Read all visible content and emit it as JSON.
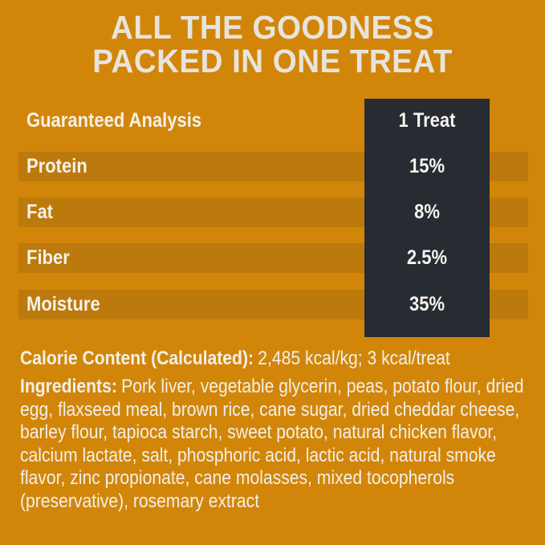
{
  "palette": {
    "background": "#D28609",
    "row_band": "#BC7A0C",
    "value_column": "#272B32",
    "text_light": "#F2EFE8",
    "title_color": "#E7E4DD"
  },
  "title": {
    "line1": "ALL THE GOODNESS",
    "line2": "PACKED IN ONE TREAT"
  },
  "analysis_table": {
    "header": {
      "label": "Guaranteed Analysis",
      "value_col": "1 Treat"
    },
    "rows": [
      {
        "label": "Protein",
        "value": "15%"
      },
      {
        "label": "Fat",
        "value": "8%"
      },
      {
        "label": "Fiber",
        "value": "2.5%"
      },
      {
        "label": "Moisture",
        "value": "35%"
      }
    ]
  },
  "calorie": {
    "label": "Calorie Content (Calculated):",
    "value": "2,485 kcal/kg; 3 kcal/treat"
  },
  "ingredients": {
    "label": "Ingredients:",
    "text": "Pork liver, vegetable glycerin, peas, potato flour, dried egg, flaxseed meal, brown rice, cane sugar, dried cheddar cheese, barley flour, tapioca starch, sweet potato, natural chicken flavor, calcium lactate, salt, phosphoric acid, lactic acid, natural smoke flavor, zinc propionate, cane molasses, mixed tocopherols (preservative), rosemary extract"
  }
}
